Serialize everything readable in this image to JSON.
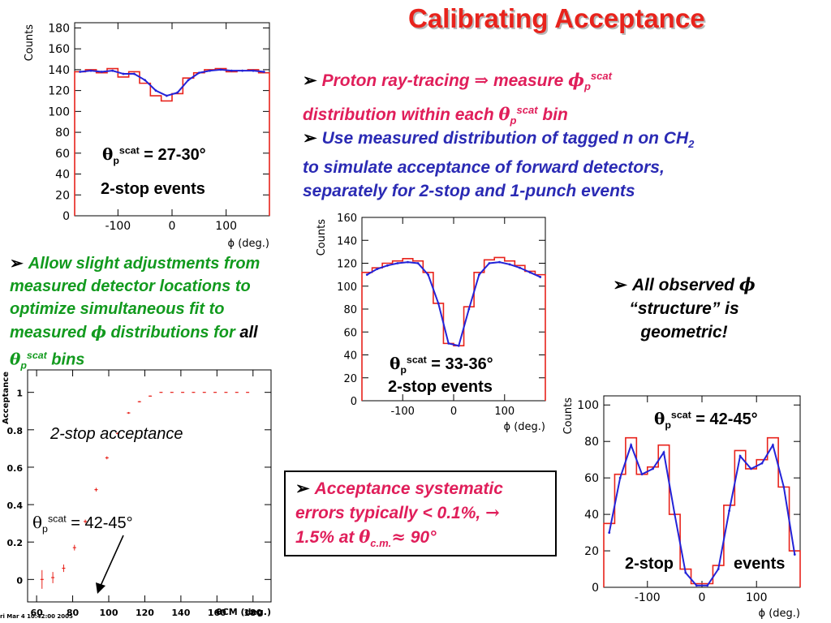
{
  "title": "Calibrating Acceptance",
  "bullets": {
    "b1_pre": "Proton ray-tracing",
    "b1_arrow": "⇒",
    "b1_mid": "measure",
    "b1_phi": "ϕ",
    "b1_sub": "p",
    "b1_sup": "scat",
    "b1_line2a": "distribution within each",
    "b1_theta": "θ",
    "b1_sub2": "p",
    "b1_sup2": "scat",
    "b1_line2b": "bin",
    "b2_l1": "Use measured distribution of tagged n on CH",
    "b2_sub": "2",
    "b2_l2": "to simulate acceptance of forward detectors,",
    "b2_l3": "separately for 2-stop and 1-punch events",
    "b3_l1": "Allow slight adjustments from",
    "b3_l2": "measured detector locations to",
    "b3_l3": "optimize simultaneous fit to",
    "b3_l4a": "measured",
    "b3_phi": "ϕ",
    "b3_l4b": "distributions for",
    "b3_all": "all",
    "b3_theta": "θ",
    "b3_sub": "p",
    "b3_sup": "scat",
    "b3_bins": "bins",
    "b4_l1a": "All observed",
    "b4_phi": "ϕ",
    "b4_l2": "“structure” is",
    "b4_l3": "geometric!",
    "b5_l1": "Acceptance systematic",
    "b5_l2a": "errors typically",
    "b5_lt": "<",
    "b5_l2b": "0.1%,",
    "b5_arrow": "→",
    "b5_l3a": "1.5% at",
    "b5_theta": "θ",
    "b5_sub": "c.m.",
    "b5_approx": "≈",
    "b5_l3b": "90°"
  },
  "labels": {
    "p1_theta": "θ",
    "p1_sub": "p",
    "p1_sup": "scat",
    "p1_range": "= 27-30°",
    "p1_events": "2-stop events",
    "p2_theta": "θ",
    "p2_sub": "p",
    "p2_sup": "scat",
    "p2_range": "= 33-36°",
    "p2_events": "2-stop events",
    "p3_theta": "θ",
    "p3_sub": "p",
    "p3_sup": "scat",
    "p3_range": "= 42-45°",
    "p3_events_a": "2-stop",
    "p3_events_b": "events",
    "p4_caption": "2-stop acceptance",
    "p4_theta": "θ",
    "p4_sub": "p",
    "p4_sup": "scat",
    "p4_range": "= 42-45°",
    "p4_timestamp": "ri Mar  4 10:42:00 2005"
  },
  "colors": {
    "title": "#e8231c",
    "bullet_blue": "#2a2ab4",
    "bullet_green": "#129a1e",
    "bullet_red": "#e01e5a",
    "data_red": "#e8231c",
    "fit_blue": "#2323d8"
  },
  "chart_data": [
    {
      "type": "line",
      "ylabel": "Counts",
      "xlabel": "ϕ (deg.)",
      "xlim": [
        -180,
        180
      ],
      "ylim": [
        0,
        185
      ],
      "xticks": [
        -100,
        0,
        100
      ],
      "yticks": [
        0,
        20,
        40,
        60,
        80,
        100,
        120,
        140,
        160,
        180
      ],
      "series": [
        {
          "color": "#e8231c",
          "style": "histogram",
          "x": [
            -170,
            -150,
            -130,
            -110,
            -90,
            -70,
            -50,
            -30,
            -10,
            10,
            30,
            50,
            70,
            90,
            110,
            130,
            150,
            170
          ],
          "y": [
            138,
            140,
            137,
            141,
            133,
            138,
            127,
            115,
            110,
            117,
            132,
            137,
            140,
            141,
            138,
            139,
            140,
            137
          ]
        },
        {
          "color": "#2323d8",
          "style": "line",
          "x": [
            -170,
            -150,
            -130,
            -110,
            -90,
            -70,
            -50,
            -30,
            -10,
            10,
            30,
            50,
            70,
            90,
            110,
            130,
            150,
            170
          ],
          "y": [
            138,
            139,
            138,
            139,
            136,
            136,
            130,
            120,
            115,
            118,
            130,
            137,
            139,
            140,
            139,
            139,
            139,
            138
          ]
        }
      ]
    },
    {
      "type": "line",
      "ylabel": "Counts",
      "xlabel": "ϕ (deg.)",
      "xlim": [
        -180,
        180
      ],
      "ylim": [
        0,
        160
      ],
      "xticks": [
        -100,
        0,
        100
      ],
      "yticks": [
        0,
        20,
        40,
        60,
        80,
        100,
        120,
        140,
        160
      ],
      "series": [
        {
          "color": "#e8231c",
          "style": "histogram",
          "x": [
            -170,
            -150,
            -130,
            -110,
            -90,
            -70,
            -50,
            -30,
            -10,
            10,
            30,
            50,
            70,
            90,
            110,
            130,
            150,
            170
          ],
          "y": [
            112,
            116,
            120,
            122,
            124,
            122,
            112,
            85,
            50,
            48,
            82,
            112,
            123,
            125,
            122,
            118,
            113,
            110
          ]
        },
        {
          "color": "#2323d8",
          "style": "line",
          "x": [
            -170,
            -150,
            -130,
            -110,
            -90,
            -70,
            -50,
            -30,
            -10,
            10,
            30,
            50,
            70,
            90,
            110,
            130,
            150,
            170
          ],
          "y": [
            110,
            115,
            118,
            120,
            121,
            120,
            110,
            85,
            50,
            48,
            80,
            110,
            120,
            121,
            119,
            116,
            112,
            108
          ]
        }
      ]
    },
    {
      "type": "line",
      "ylabel": "Counts",
      "xlabel": "ϕ (deg.)",
      "xlim": [
        -180,
        180
      ],
      "ylim": [
        0,
        105
      ],
      "xticks": [
        -100,
        0,
        100
      ],
      "yticks": [
        0,
        20,
        40,
        60,
        80,
        100
      ],
      "series": [
        {
          "color": "#e8231c",
          "style": "histogram",
          "x": [
            -170,
            -150,
            -130,
            -110,
            -90,
            -70,
            -50,
            -30,
            -10,
            10,
            30,
            50,
            70,
            90,
            110,
            130,
            150,
            170
          ],
          "y": [
            35,
            62,
            82,
            62,
            66,
            78,
            40,
            10,
            2,
            2,
            12,
            45,
            75,
            65,
            70,
            82,
            55,
            20
          ]
        },
        {
          "color": "#2323d8",
          "style": "line",
          "x": [
            -170,
            -150,
            -130,
            -110,
            -90,
            -70,
            -50,
            -30,
            -10,
            10,
            30,
            50,
            70,
            90,
            110,
            130,
            150,
            170
          ],
          "y": [
            30,
            60,
            78,
            62,
            65,
            74,
            40,
            8,
            1,
            1,
            10,
            42,
            72,
            65,
            68,
            78,
            55,
            18
          ]
        }
      ]
    },
    {
      "type": "scatter",
      "ylabel": "Acceptance",
      "xlabel": "θCM (deg.)",
      "xlim": [
        55,
        190
      ],
      "ylim": [
        -0.12,
        1.12
      ],
      "xticks": [
        60,
        80,
        100,
        120,
        140,
        160,
        180
      ],
      "yticks": [
        0,
        0.2,
        0.4,
        0.6,
        0.8,
        1
      ],
      "series": [
        {
          "color": "#e8231c",
          "x": [
            63,
            69,
            75,
            81,
            87,
            93,
            99,
            105,
            111,
            117,
            123,
            129,
            135,
            141,
            147,
            153,
            159,
            165,
            171,
            177
          ],
          "y": [
            0.0,
            0.01,
            0.06,
            0.17,
            0.31,
            0.48,
            0.65,
            0.78,
            0.89,
            0.95,
            0.98,
            1.0,
            1.0,
            1.0,
            1.0,
            1.0,
            1.0,
            1.0,
            1.0,
            1.0
          ],
          "err": [
            0.05,
            0.03,
            0.02,
            0.015,
            0.01,
            0.01,
            0.008,
            0.006,
            0.005,
            0.004,
            0.003,
            0.002,
            0.002,
            0.002,
            0.002,
            0.002,
            0.002,
            0.002,
            0.002,
            0.002
          ]
        }
      ]
    }
  ]
}
